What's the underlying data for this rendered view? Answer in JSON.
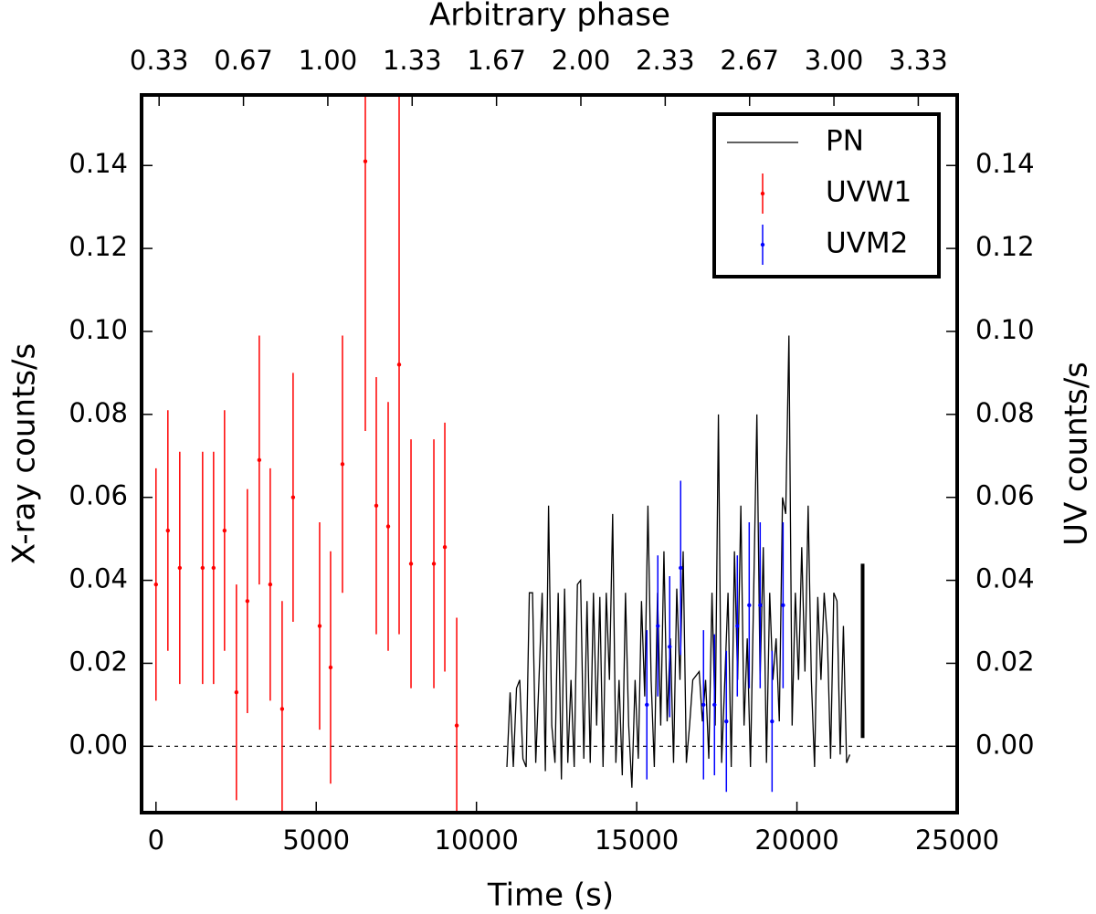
{
  "chart_data": {
    "type": "errorbar",
    "x_label": "Time (s)",
    "y_label": "X-ray counts/s",
    "y2_label": "UV counts/s",
    "x2_label": "Arbitrary phase",
    "xlim": [
      -450,
      25000
    ],
    "ylim": [
      -0.016,
      0.157
    ],
    "y2lim": [
      -0.016,
      0.157
    ],
    "x2lim": [
      0.264,
      3.487
    ],
    "xticks": [
      0,
      5000,
      10000,
      15000,
      20000,
      25000
    ],
    "yticks": [
      {
        "value": 0,
        "label": "0.00"
      },
      {
        "value": 0.02,
        "label": "0.02"
      },
      {
        "value": 0.04,
        "label": "0.04"
      },
      {
        "value": 0.06,
        "label": "0.06"
      },
      {
        "value": 0.08,
        "label": "0.08"
      },
      {
        "value": 0.1,
        "label": "0.10"
      },
      {
        "value": 0.12,
        "label": "0.12"
      },
      {
        "value": 0.14,
        "label": "0.14"
      }
    ],
    "y2ticks": [
      {
        "value": 0,
        "label": "0.00"
      },
      {
        "value": 0.02,
        "label": "0.02"
      },
      {
        "value": 0.04,
        "label": "0.04"
      },
      {
        "value": 0.06,
        "label": "0.06"
      },
      {
        "value": 0.08,
        "label": "0.08"
      },
      {
        "value": 0.1,
        "label": "0.10"
      },
      {
        "value": 0.12,
        "label": "0.12"
      },
      {
        "value": 0.14,
        "label": "0.14"
      }
    ],
    "x2ticks": [
      {
        "value": 0.3333,
        "label": "0.33"
      },
      {
        "value": 0.6667,
        "label": "0.67"
      },
      {
        "value": 1,
        "label": "1.00"
      },
      {
        "value": 1.3333,
        "label": "1.33"
      },
      {
        "value": 1.6667,
        "label": "1.67"
      },
      {
        "value": 2,
        "label": "2.00"
      },
      {
        "value": 2.3333,
        "label": "2.33"
      },
      {
        "value": 2.6667,
        "label": "2.67"
      },
      {
        "value": 3,
        "label": "3.00"
      },
      {
        "value": 3.3333,
        "label": "3.33"
      }
    ],
    "hline": 0,
    "legend": "upper right",
    "series": [
      {
        "name": "PN",
        "type": "line",
        "color": "#000000",
        "x": [
          10950,
          11050,
          11150,
          11250,
          11350,
          11450,
          11550,
          11650,
          11750,
          11850,
          11950,
          12050,
          12150,
          12250,
          12350,
          12450,
          12550,
          12650,
          12750,
          12850,
          12950,
          13050,
          13150,
          13250,
          13350,
          13450,
          13550,
          13650,
          13750,
          13850,
          13950,
          14050,
          14150,
          14250,
          14350,
          14450,
          14550,
          14650,
          14750,
          14850,
          14950,
          15050,
          15150,
          15250,
          15350,
          15450,
          15550,
          15650,
          15750,
          15850,
          15950,
          16050,
          16150,
          16250,
          16350,
          16450,
          16550,
          16650,
          16750,
          16850,
          16950,
          17050,
          17150,
          17250,
          17350,
          17450,
          17550,
          17650,
          17750,
          17850,
          17950,
          18050,
          18150,
          18250,
          18350,
          18450,
          18550,
          18650,
          18750,
          18850,
          18950,
          19050,
          19150,
          19250,
          19350,
          19450,
          19550,
          19650,
          19750,
          19850,
          19950,
          20050,
          20150,
          20250,
          20350,
          20450,
          20550,
          20650,
          20750,
          20850,
          20950,
          21050,
          21150,
          21250,
          21350,
          21450,
          21550,
          21650
        ],
        "values": [
          -0.005,
          0.013,
          -0.005,
          0.014,
          0.016,
          -0.003,
          -0.005,
          0.037,
          0.037,
          -0.004,
          0.016,
          0.037,
          -0.006,
          0.058,
          0.005,
          -0.004,
          0.037,
          -0.008,
          0.038,
          -0.004,
          0.016,
          -0.005,
          0.039,
          0.04,
          -0.003,
          0.035,
          -0.004,
          0.037,
          0.005,
          0.036,
          -0.005,
          0.037,
          0.016,
          0.056,
          -0.004,
          0.016,
          -0.007,
          0.037,
          0.005,
          -0.01,
          0.016,
          -0.003,
          0.035,
          0.012,
          0.058,
          0.016,
          -0.005,
          0.037,
          0.005,
          0.047,
          0.006,
          0.026,
          -0.004,
          0.038,
          0.016,
          0.047,
          -0.004,
          0.005,
          0.016,
          0.017,
          0.018,
          0.006,
          0.016,
          -0.003,
          0.037,
          0.005,
          0.08,
          -0.004,
          0.016,
          0.037,
          -0.005,
          0.047,
          0.016,
          0.058,
          0.005,
          0.026,
          -0.005,
          0.037,
          0.08,
          0.016,
          0.048,
          -0.004,
          0.037,
          0.016,
          0.026,
          0.006,
          0.06,
          0.056,
          0.099,
          0.005,
          0.037,
          0.016,
          0.048,
          0.018,
          0.058,
          0.016,
          -0.005,
          0.036,
          0.016,
          0.037,
          0.026,
          -0.003,
          0.037,
          0.035,
          -0.002,
          0.029,
          -0.004,
          -0.002
        ]
      },
      {
        "name": "UVW1",
        "type": "errorbar",
        "color": "#ff0000",
        "x": [
          0,
          371,
          742,
          1455,
          1797,
          2139,
          2510,
          2852,
          3223,
          3565,
          3936,
          4278,
          5106,
          5448,
          5819,
          6532,
          6874,
          7245,
          7587,
          7958,
          8671,
          9013,
          9384
        ],
        "values": [
          0.039,
          0.052,
          0.043,
          0.043,
          0.043,
          0.052,
          0.013,
          0.035,
          0.069,
          0.039,
          0.009,
          0.06,
          0.029,
          0.019,
          0.068,
          0.141,
          0.058,
          0.053,
          0.092,
          0.044,
          0.044,
          0.048,
          0.005
        ],
        "errors": [
          0.028,
          0.029,
          0.028,
          0.028,
          0.028,
          0.029,
          0.026,
          0.027,
          0.03,
          0.028,
          0.026,
          0.03,
          0.025,
          0.028,
          0.031,
          0.065,
          0.031,
          0.03,
          0.065,
          0.03,
          0.03,
          0.03,
          0.026
        ]
      },
      {
        "name": "UVM2",
        "type": "errorbar",
        "color": "#0000ff",
        "axis": "y2",
        "x": [
          15317,
          15659,
          16030,
          16372,
          17085,
          17427,
          17798,
          18140,
          18511,
          18853,
          19224,
          19567
        ],
        "values": [
          0.01,
          0.029,
          0.024,
          0.043,
          0.01,
          0.01,
          0.006,
          0.029,
          0.034,
          0.034,
          0.006,
          0.034
        ],
        "errors": [
          0.018,
          0.017,
          0.017,
          0.021,
          0.018,
          0.017,
          0.017,
          0.017,
          0.02,
          0.02,
          0.017,
          0.02
        ]
      }
    ],
    "pn_error_bar": {
      "x": 22050,
      "y": 0.023,
      "yerr": 0.021
    }
  }
}
